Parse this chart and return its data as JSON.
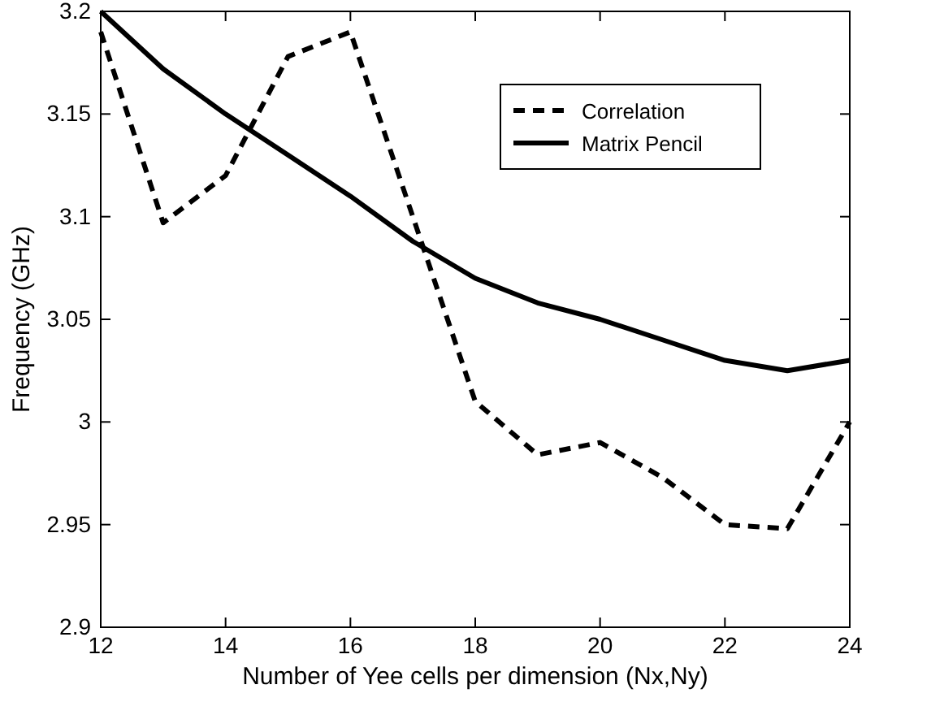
{
  "chart_data": {
    "type": "line",
    "xlabel": "Number of Yee cells per dimension (Nx,Ny)",
    "ylabel": "Frequency (GHz)",
    "x": [
      12,
      13,
      14,
      15,
      16,
      17,
      18,
      19,
      20,
      21,
      22,
      23,
      24
    ],
    "series": [
      {
        "name": "Correlation",
        "color": "#000000",
        "line_style": "dashed",
        "values": [
          3.19,
          3.097,
          3.12,
          3.178,
          3.19,
          3.1,
          3.01,
          2.984,
          2.99,
          2.973,
          2.95,
          2.948,
          3.0
        ]
      },
      {
        "name": "Matrix Pencil",
        "color": "#000000",
        "line_style": "solid",
        "values": [
          3.2,
          3.172,
          3.15,
          3.13,
          3.11,
          3.088,
          3.07,
          3.058,
          3.05,
          3.04,
          3.03,
          3.025,
          3.03
        ]
      }
    ],
    "xlim": [
      12,
      24
    ],
    "xticks": [
      12,
      14,
      16,
      18,
      20,
      22,
      24
    ],
    "ylim": [
      2.9,
      3.2
    ],
    "yticks": [
      2.9,
      2.95,
      3,
      3.05,
      3.1,
      3.15,
      3.2
    ],
    "grid": false,
    "legend": "top right",
    "marker": "none"
  }
}
